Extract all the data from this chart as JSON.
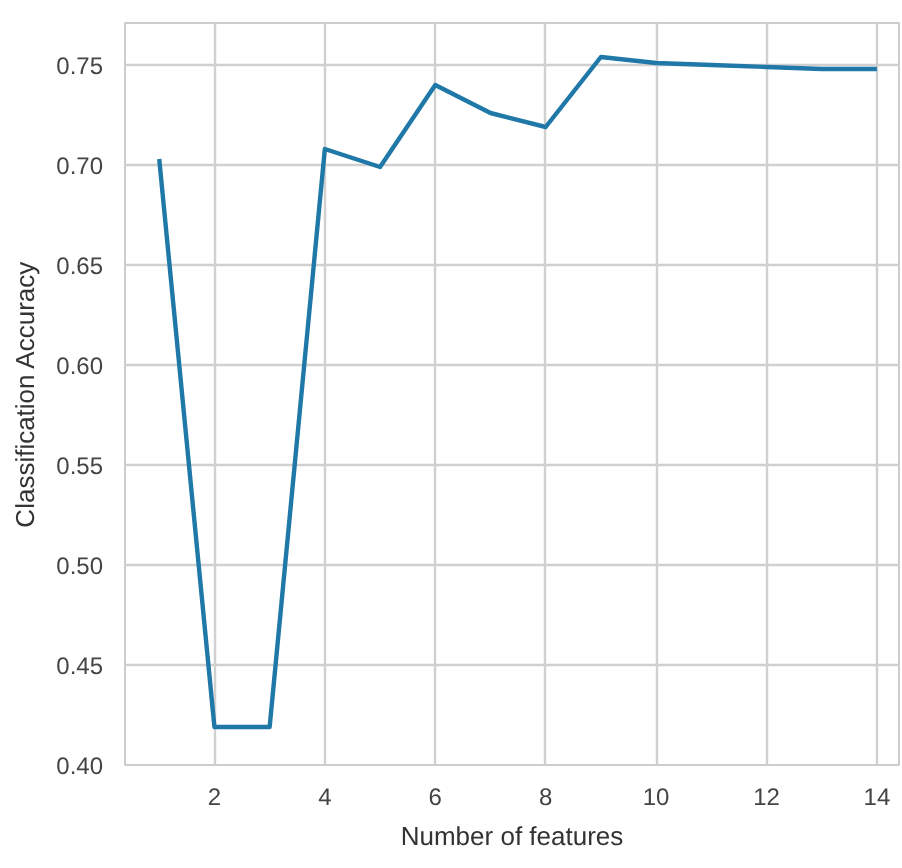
{
  "chart_data": {
    "type": "line",
    "xlabel": "Number of features",
    "ylabel": "Classification Accuracy",
    "x": [
      1,
      2,
      3,
      4,
      5,
      6,
      7,
      8,
      9,
      10,
      11,
      12,
      13,
      14
    ],
    "series": [
      {
        "color": "#1f78a8",
        "values": [
          0.703,
          0.419,
          0.419,
          0.708,
          0.699,
          0.74,
          0.726,
          0.719,
          0.754,
          0.751,
          0.75,
          0.749,
          0.748,
          0.748
        ]
      }
    ],
    "xlim": [
      0.38,
      14.4
    ],
    "ylim": [
      0.4,
      0.771
    ],
    "xticks": [
      2,
      4,
      6,
      8,
      10,
      12,
      14
    ],
    "yticks": [
      {
        "value": 0.4,
        "label": "0.40"
      },
      {
        "value": 0.45,
        "label": "0.45"
      },
      {
        "value": 0.5,
        "label": "0.50"
      },
      {
        "value": 0.55,
        "label": "0.55"
      },
      {
        "value": 0.6,
        "label": "0.60"
      },
      {
        "value": 0.65,
        "label": "0.65"
      },
      {
        "value": 0.7,
        "label": "0.70"
      },
      {
        "value": 0.75,
        "label": "0.75"
      }
    ],
    "grid": true,
    "line_style": "solid",
    "marker": "none"
  }
}
